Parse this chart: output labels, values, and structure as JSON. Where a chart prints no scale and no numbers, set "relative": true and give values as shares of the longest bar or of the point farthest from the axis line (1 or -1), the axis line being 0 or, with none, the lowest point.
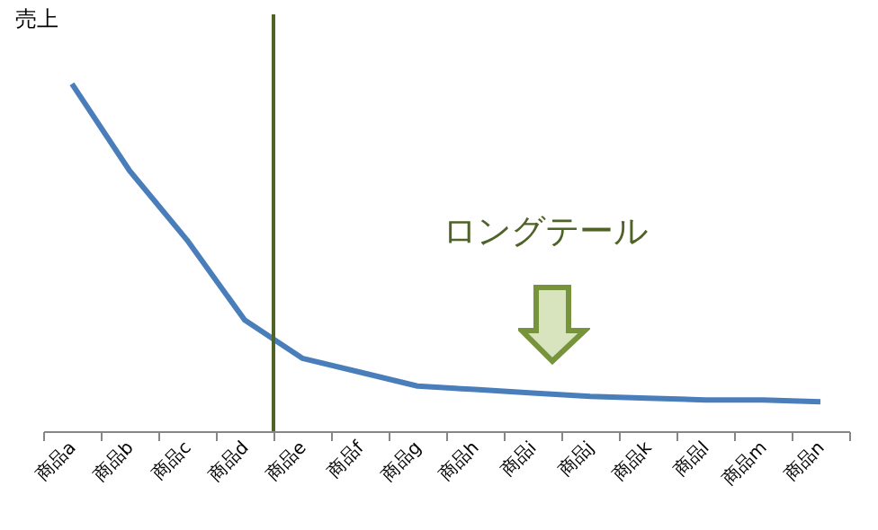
{
  "chart_data": {
    "type": "line",
    "relative": true,
    "ylabel": "売上",
    "categories": [
      "商品a",
      "商品b",
      "商品c",
      "商品d",
      "商品e",
      "商品f",
      "商品g",
      "商品h",
      "商品i",
      "商品j",
      "商品k",
      "商品l",
      "商品m",
      "商品n"
    ],
    "series": [
      {
        "color": "#4a7ebb",
        "values": [
          1,
          0.75,
          0.55,
          0.32,
          0.21,
          0.17,
          0.13,
          0.12,
          0.11,
          0.1,
          0.095,
          0.09,
          0.09,
          0.085
        ]
      }
    ],
    "ref_lines": [
      {
        "axis": "x",
        "value": "商品d",
        "color": "#4f6228"
      }
    ],
    "annotations": [
      "ロングテール"
    ]
  }
}
